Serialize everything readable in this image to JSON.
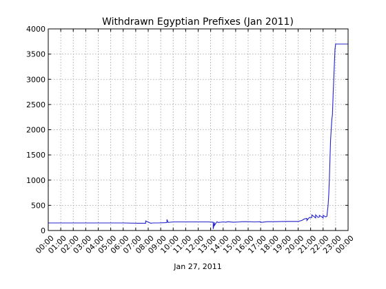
{
  "chart_data": {
    "type": "line",
    "title": "Withdrawn Egyptian Prefixes (Jan 2011)",
    "xlabel": "Jan 27, 2011",
    "ylabel": "",
    "x_ticks": [
      "00:00",
      "01:00",
      "02:00",
      "03:00",
      "04:00",
      "05:00",
      "06:00",
      "07:00",
      "08:00",
      "09:00",
      "10:00",
      "11:00",
      "12:00",
      "13:00",
      "14:00",
      "15:00",
      "16:00",
      "17:00",
      "18:00",
      "19:00",
      "20:00",
      "21:00",
      "22:00",
      "23:00",
      "00:00"
    ],
    "y_ticks": [
      0,
      500,
      1000,
      1500,
      2000,
      2500,
      3000,
      3500,
      4000
    ],
    "xlim_hours": [
      0,
      24
    ],
    "ylim": [
      0,
      4000
    ],
    "grid": true,
    "color": "#2222cc",
    "series": [
      {
        "name": "",
        "x_hours": [
          0,
          2,
          4,
          6,
          7.2,
          7.6,
          7.8,
          7.8,
          8.2,
          8.4,
          8.8,
          9.4,
          9.5,
          9.5,
          9.6,
          10.0,
          11.0,
          12.0,
          12.8,
          13.2,
          13.2,
          13.3,
          13.3,
          13.5,
          13.6,
          14.0,
          14.2,
          14.4,
          14.8,
          15.3,
          15.5,
          16.0,
          16.5,
          17.0,
          17.0,
          17.5,
          18.0,
          19.0,
          20.0,
          20.3,
          20.5,
          20.7,
          20.7,
          20.9,
          21.0,
          21.1,
          21.1,
          21.3,
          21.4,
          21.4,
          21.6,
          21.7,
          21.7,
          21.9,
          22.0,
          22.0,
          22.2,
          22.3,
          22.4,
          22.45,
          22.5,
          22.55,
          22.6,
          22.65,
          22.7,
          22.75,
          22.8,
          22.85,
          22.9,
          22.95,
          23.0,
          23.05,
          23.1,
          23.3,
          23.6,
          24.0
        ],
        "values": [
          150,
          150,
          150,
          150,
          145,
          145,
          145,
          190,
          145,
          150,
          150,
          155,
          160,
          220,
          160,
          170,
          170,
          170,
          170,
          165,
          30,
          165,
          100,
          175,
          160,
          170,
          165,
          175,
          165,
          170,
          175,
          175,
          170,
          175,
          160,
          175,
          175,
          180,
          180,
          200,
          230,
          240,
          200,
          260,
          250,
          260,
          310,
          270,
          250,
          310,
          260,
          270,
          300,
          270,
          250,
          300,
          270,
          280,
          500,
          700,
          1000,
          1400,
          1800,
          2000,
          2200,
          2300,
          2700,
          3000,
          3300,
          3600,
          3700,
          3700,
          3700,
          3700,
          3700,
          3700
        ]
      }
    ]
  }
}
